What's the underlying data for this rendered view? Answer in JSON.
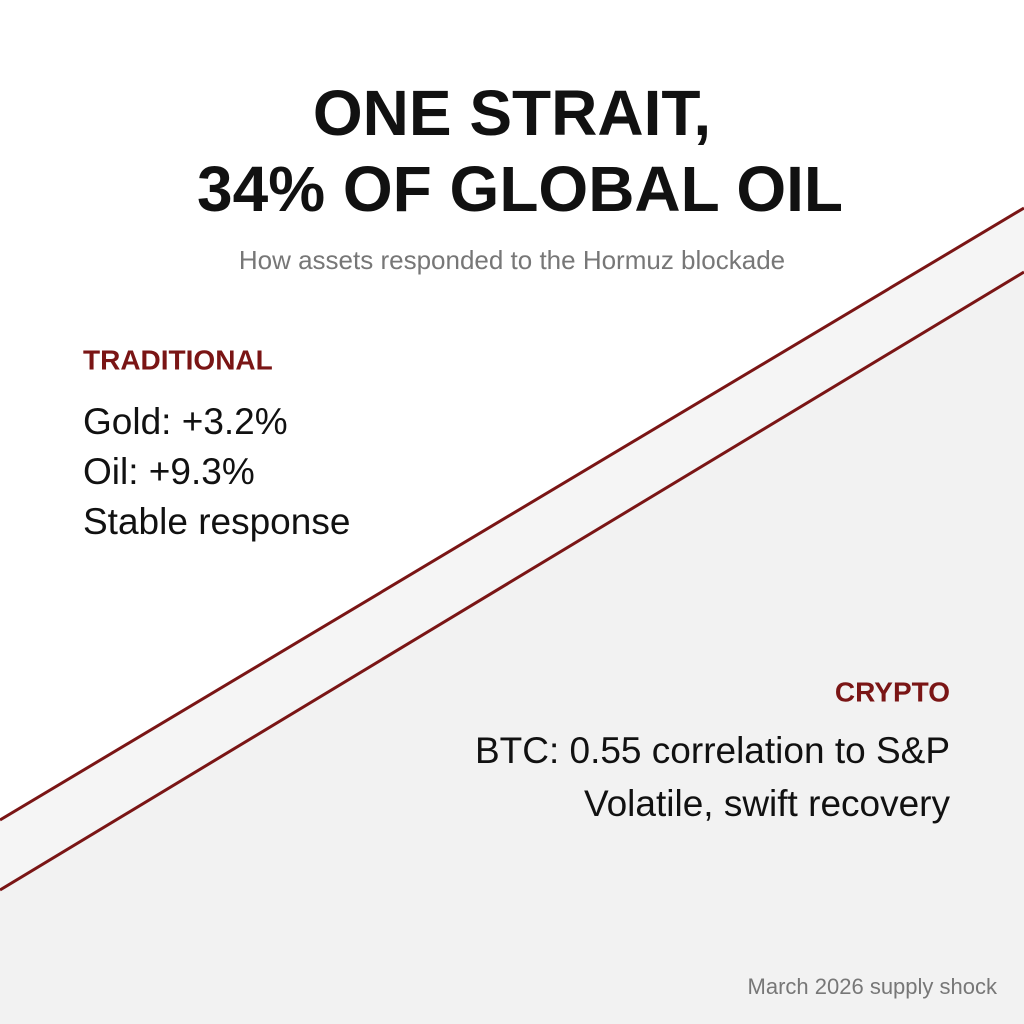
{
  "title": [
    "ONE STRAIT,",
    "34% OF GLOBAL OIL"
  ],
  "subtitle": "How assets responded to the Hormuz blockade",
  "traditional": {
    "heading": "TRADITIONAL",
    "lines": [
      "Gold: +3.2%",
      "Oil: +9.3%",
      "Stable response"
    ]
  },
  "crypto": {
    "heading": "CRYPTO",
    "lines": [
      "BTC: 0.55 correlation to S&P",
      "Volatile, swift recovery"
    ]
  },
  "footer": "March 2026 supply shock"
}
